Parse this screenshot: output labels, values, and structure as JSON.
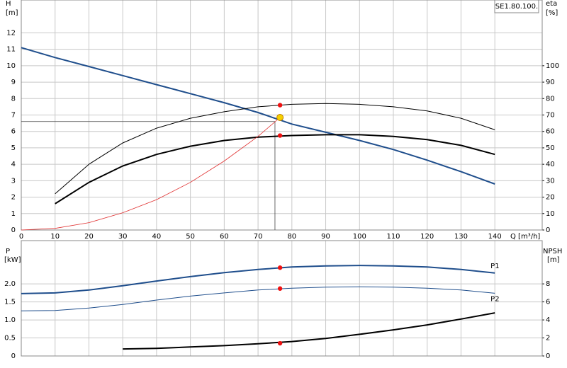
{
  "chart_data": [
    {
      "type": "line",
      "model": "SE1.80.100.",
      "y_label": "H",
      "y_unit": "[m]",
      "y2_label": "eta",
      "y2_unit": "[%]",
      "x_label": "Q [m³/h]",
      "xlim": [
        0,
        154
      ],
      "xticks": [
        0,
        10,
        20,
        30,
        40,
        50,
        60,
        70,
        80,
        90,
        100,
        110,
        120,
        130,
        140
      ],
      "ylim": [
        0,
        14
      ],
      "yticks": [
        0,
        1,
        2,
        3,
        4,
        5,
        6,
        7,
        8,
        9,
        10,
        11,
        12
      ],
      "y2lim": [
        0,
        140
      ],
      "y2ticks": [
        0,
        10,
        20,
        30,
        40,
        50,
        60,
        70,
        80,
        90,
        100
      ],
      "grid": true,
      "series": [
        {
          "color": "#1f4e8c",
          "width": 2,
          "x": [
            0,
            10,
            20,
            30,
            40,
            50,
            60,
            70,
            80,
            90,
            100,
            110,
            120,
            130,
            140
          ],
          "values": [
            11.1,
            10.5,
            9.95,
            9.4,
            8.85,
            8.3,
            7.75,
            7.15,
            6.45,
            5.95,
            5.45,
            4.9,
            4.25,
            3.55,
            2.8
          ]
        },
        {
          "color": "#000000",
          "width": 1,
          "axis": "y2",
          "x": [
            10,
            20,
            30,
            40,
            50,
            60,
            70,
            80,
            90,
            100,
            110,
            120,
            130,
            140
          ],
          "values": [
            22,
            40,
            53,
            62,
            68,
            72,
            75,
            76.5,
            77,
            76.5,
            75,
            72.5,
            68,
            61
          ]
        },
        {
          "color": "#000000",
          "width": 2,
          "axis": "y2",
          "x": [
            10,
            20,
            30,
            40,
            50,
            60,
            70,
            80,
            90,
            100,
            110,
            120,
            130,
            140
          ],
          "values": [
            16,
            29,
            39,
            46,
            51,
            54.5,
            56.5,
            57.5,
            58,
            58,
            57,
            55,
            51.5,
            46
          ]
        },
        {
          "color": "#e03030",
          "width": 0.8,
          "x": [
            0,
            10,
            20,
            30,
            40,
            50,
            60,
            70,
            76.5
          ],
          "values": [
            0,
            0.1,
            0.45,
            1.05,
            1.85,
            2.9,
            4.2,
            5.7,
            6.85
          ]
        }
      ],
      "duty": {
        "q": 75,
        "h": 6.6
      },
      "markers": [
        {
          "x": 76.5,
          "y": 76,
          "axis": "y2",
          "color": "#ee1111"
        },
        {
          "x": 76.5,
          "y": 57.5,
          "axis": "y2",
          "color": "#ee1111"
        },
        {
          "x": 76.5,
          "y": 6.85,
          "color": "#f5d000"
        }
      ]
    },
    {
      "type": "line",
      "y_label": "P",
      "y_unit": "[kW]",
      "y2_label": "NPSH",
      "y2_unit": "[m]",
      "xlim": [
        0,
        154
      ],
      "xticks": [
        0,
        10,
        20,
        30,
        40,
        50,
        60,
        70,
        80,
        90,
        100,
        110,
        120,
        130,
        140
      ],
      "ylim": [
        0,
        3.2
      ],
      "yticks": [
        0,
        0.5,
        {
          "value": 1,
          "label": "1.0"
        },
        1.5,
        {
          "value": 2,
          "label": "2.0"
        }
      ],
      "y2lim": [
        0,
        12.8
      ],
      "y2ticks": [
        0,
        2,
        4,
        6,
        8
      ],
      "grid": true,
      "series": [
        {
          "name": "P1",
          "color": "#1f4e8c",
          "width": 2,
          "x": [
            0,
            10,
            20,
            30,
            40,
            50,
            60,
            70,
            80,
            90,
            100,
            110,
            120,
            130,
            140
          ],
          "values": [
            1.73,
            1.75,
            1.83,
            1.95,
            2.08,
            2.2,
            2.31,
            2.4,
            2.47,
            2.5,
            2.51,
            2.5,
            2.47,
            2.4,
            2.3
          ]
        },
        {
          "name": "P2",
          "color": "#1f4e8c",
          "width": 1,
          "x": [
            0,
            10,
            20,
            30,
            40,
            50,
            60,
            70,
            80,
            90,
            100,
            110,
            120,
            130,
            140
          ],
          "values": [
            1.25,
            1.26,
            1.33,
            1.43,
            1.55,
            1.66,
            1.75,
            1.83,
            1.88,
            1.91,
            1.92,
            1.91,
            1.88,
            1.83,
            1.74
          ]
        },
        {
          "color": "#000000",
          "width": 2,
          "axis": "y2",
          "x": [
            30,
            40,
            50,
            60,
            70,
            80,
            90,
            100,
            110,
            120,
            130,
            140
          ],
          "values": [
            0.78,
            0.85,
            1.0,
            1.15,
            1.35,
            1.6,
            1.95,
            2.4,
            2.9,
            3.45,
            4.1,
            4.78
          ]
        }
      ],
      "markers": [
        {
          "x": 76.5,
          "y": 2.45,
          "color": "#ee1111"
        },
        {
          "x": 76.5,
          "y": 1.87,
          "color": "#ee1111"
        },
        {
          "x": 76.5,
          "y": 1.41,
          "axis": "y2",
          "color": "#ee1111"
        }
      ]
    }
  ]
}
